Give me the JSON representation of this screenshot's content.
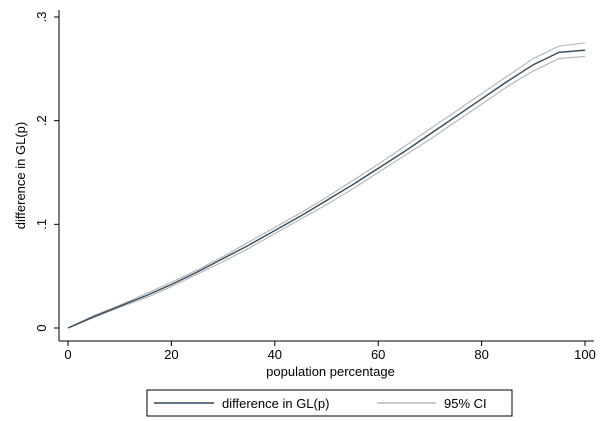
{
  "chart_data": {
    "type": "line",
    "xlabel": "population percentage",
    "ylabel": "difference in GL(p)",
    "xlim": [
      0,
      100
    ],
    "ylim": [
      0,
      0.3
    ],
    "x_ticks": [
      0,
      20,
      40,
      60,
      80,
      100
    ],
    "x_tick_labels": [
      "0",
      "20",
      "40",
      "60",
      "80",
      "100"
    ],
    "y_ticks": [
      0,
      0.1,
      0.2,
      0.3
    ],
    "y_tick_labels": [
      "0",
      ".1",
      ".2",
      ".3"
    ],
    "grid": false,
    "legend_position": "bottom",
    "series": [
      {
        "name": "difference in GL(p)",
        "color": "#2c4a5e",
        "x": [
          0,
          5,
          10,
          15,
          20,
          25,
          30,
          35,
          40,
          45,
          50,
          55,
          60,
          65,
          70,
          75,
          80,
          85,
          90,
          95,
          100
        ],
        "y": [
          0,
          0.011,
          0.021,
          0.031,
          0.042,
          0.054,
          0.067,
          0.08,
          0.094,
          0.108,
          0.123,
          0.138,
          0.154,
          0.17,
          0.187,
          0.204,
          0.221,
          0.238,
          0.254,
          0.266,
          0.268
        ]
      },
      {
        "name": "95% CI",
        "color": "#b8b8b8",
        "x": [
          0,
          5,
          10,
          15,
          20,
          25,
          30,
          35,
          40,
          45,
          50,
          55,
          60,
          65,
          70,
          75,
          80,
          85,
          90,
          95,
          100
        ],
        "y": [
          0,
          0.012,
          0.022,
          0.033,
          0.044,
          0.056,
          0.069,
          0.083,
          0.097,
          0.111,
          0.126,
          0.142,
          0.158,
          0.175,
          0.192,
          0.209,
          0.226,
          0.243,
          0.26,
          0.272,
          0.275
        ]
      },
      {
        "name": "95% CI",
        "color": "#b8b8b8",
        "x": [
          0,
          5,
          10,
          15,
          20,
          25,
          30,
          35,
          40,
          45,
          50,
          55,
          60,
          65,
          70,
          75,
          80,
          85,
          90,
          95,
          100
        ],
        "y": [
          0,
          0.01,
          0.02,
          0.029,
          0.04,
          0.052,
          0.064,
          0.077,
          0.091,
          0.105,
          0.119,
          0.134,
          0.15,
          0.166,
          0.182,
          0.199,
          0.216,
          0.233,
          0.248,
          0.26,
          0.262
        ]
      }
    ],
    "legend": [
      {
        "label": "difference in GL(p)",
        "color": "#2c4a5e"
      },
      {
        "label": "95% CI",
        "color": "#b8b8b8"
      }
    ]
  }
}
